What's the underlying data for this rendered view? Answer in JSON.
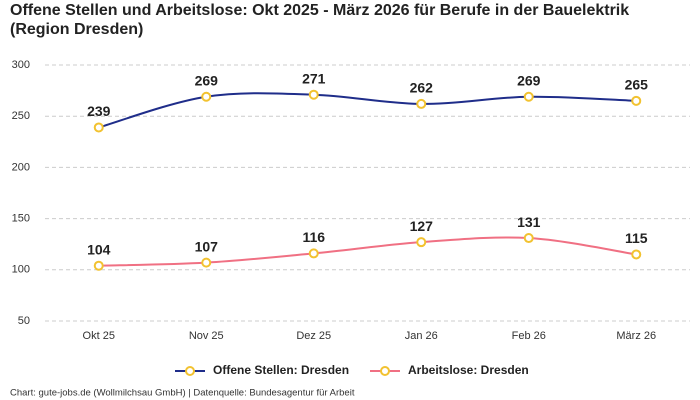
{
  "chart_data": {
    "type": "line",
    "title": "Offene Stellen und Arbeitslose: Okt 2025 - März 2026 für Berufe in der Bauelektrik",
    "title_line2": "(Region Dresden)",
    "categories": [
      "Okt 25",
      "Nov 25",
      "Dez 25",
      "Jan 26",
      "Feb 26",
      "März 26"
    ],
    "series": [
      {
        "name": "Offene Stellen: Dresden",
        "color": "#1f2d8a",
        "values": [
          239,
          269,
          271,
          262,
          269,
          265
        ]
      },
      {
        "name": "Arbeitslose: Dresden",
        "color": "#f07083",
        "values": [
          104,
          107,
          116,
          127,
          131,
          115
        ]
      }
    ],
    "marker_color": "#f2c230",
    "ylim": [
      50,
      300
    ],
    "yticks": [
      50,
      100,
      150,
      200,
      250,
      300
    ],
    "grid": true,
    "legend": "bottom",
    "source": "Chart: gute-jobs.de (Wollmilchsau GmbH) | Datenquelle: Bundesagentur für Arbeit"
  }
}
